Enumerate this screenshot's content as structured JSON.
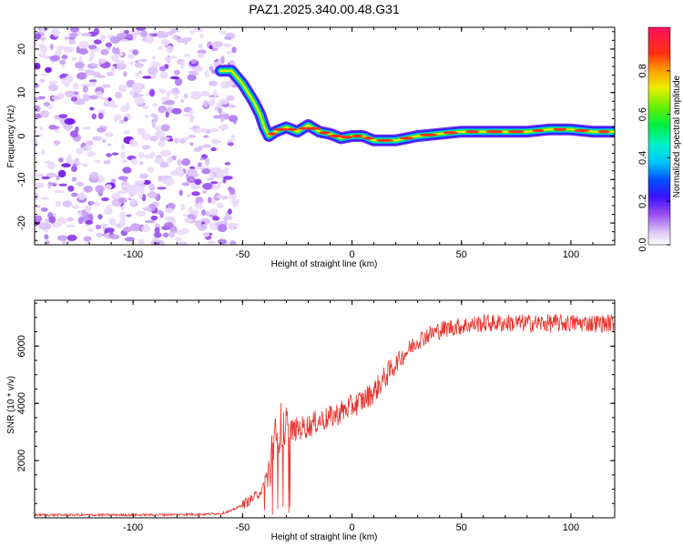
{
  "title": "PAZ1.2025.340.00.48.G31",
  "chart_data": [
    {
      "type": "heatmap",
      "name": "spectrogram",
      "xlabel": "Height of straight line (km)",
      "ylabel": "Frequency (Hz)",
      "xlim": [
        -145,
        120
      ],
      "ylim": [
        -25,
        25
      ],
      "xticks": [
        "-100",
        "-50",
        "0",
        "50",
        "100"
      ],
      "yticks": [
        "20",
        "10",
        "0",
        "-10",
        "-20"
      ],
      "colorbar": {
        "label": "Normalized spectral amplitude",
        "range": [
          0,
          1
        ],
        "ticks": [
          "0.0",
          "0.2",
          "0.4",
          "0.6",
          "0.8"
        ]
      },
      "ridge": {
        "description": "dominant frequency track",
        "x": [
          -60,
          -55,
          -50,
          -45,
          -42,
          -40,
          -38,
          -35,
          -30,
          -25,
          -20,
          -15,
          -10,
          -5,
          0,
          5,
          10,
          20,
          30,
          40,
          50,
          60,
          70,
          80,
          90,
          100,
          110,
          120
        ],
        "freq": [
          15,
          15,
          12,
          8,
          5,
          2,
          0,
          1,
          2,
          1,
          2.5,
          1,
          0.5,
          -0.5,
          0,
          0,
          -1,
          -1,
          0,
          0.5,
          1,
          1,
          1,
          1,
          1.5,
          1.5,
          1,
          1
        ]
      },
      "noise_region_x": [
        -145,
        -53
      ]
    },
    {
      "type": "line",
      "name": "snr",
      "xlabel": "Height of straight line (km)",
      "ylabel": "SNR (10 * v/v)",
      "xlim": [
        -145,
        120
      ],
      "ylim": [
        0,
        7600
      ],
      "xticks": [
        "-100",
        "-50",
        "0",
        "50",
        "100"
      ],
      "yticks": [
        "6000",
        "4000",
        "2000"
      ],
      "series": [
        {
          "name": "SNR",
          "color": "#e8322c",
          "x": [
            -145,
            -100,
            -70,
            -60,
            -55,
            -50,
            -45,
            -42,
            -40,
            -38,
            -36,
            -33,
            -30,
            -25,
            -20,
            -15,
            -10,
            -5,
            0,
            5,
            10,
            15,
            20,
            25,
            30,
            35,
            40,
            45,
            50,
            60,
            70,
            80,
            90,
            100,
            110,
            118
          ],
          "y": [
            100,
            100,
            120,
            150,
            250,
            450,
            700,
            900,
            1100,
            1500,
            2400,
            3200,
            3000,
            3100,
            3200,
            3400,
            3500,
            3700,
            3900,
            4100,
            4400,
            4900,
            5400,
            5800,
            6200,
            6400,
            6550,
            6650,
            6700,
            6800,
            6800,
            6800,
            6800,
            6800,
            6800,
            6800
          ]
        }
      ]
    }
  ]
}
